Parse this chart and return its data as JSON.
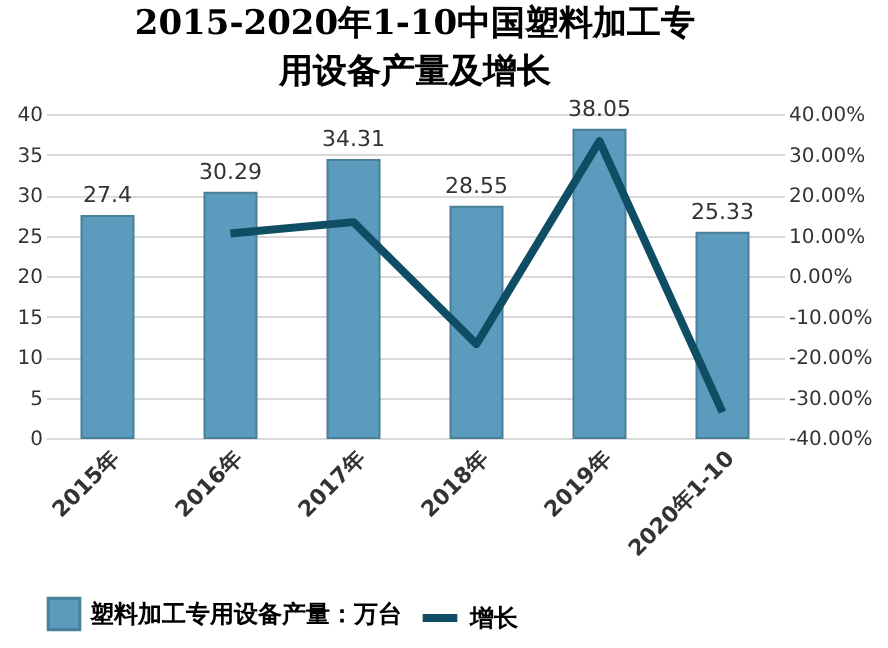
{
  "chart_data": {
    "type": "bar",
    "title": "2015-2020年1-10中国塑料加工专用设备产量及增长",
    "categories": [
      "2015年",
      "2016年",
      "2017年",
      "2018年",
      "2019年",
      "2020年1-10"
    ],
    "series": [
      {
        "name": "塑料加工专用设备产量：万台",
        "color": "#5b9bbd",
        "values": [
          27.4,
          30.29,
          34.31,
          28.55,
          38.05,
          25.33
        ],
        "value_labels": [
          "27.4",
          "30.29",
          "34.31",
          "28.55",
          "38.05",
          "25.33"
        ]
      },
      {
        "name": "增长",
        "type": "line",
        "axis": "y2",
        "color": "#0e4d64",
        "values": [
          null,
          10.5,
          13.3,
          -16.8,
          33.3,
          -33.6
        ]
      }
    ],
    "ylim": [
      0,
      40
    ],
    "yticks": [
      0,
      5,
      10,
      15,
      20,
      25,
      30,
      35,
      40
    ],
    "y2lim": [
      -40,
      40
    ],
    "y2ticks": [
      {
        "value": -40,
        "label": "-40.00%"
      },
      {
        "value": -30,
        "label": "-30.00%"
      },
      {
        "value": -20,
        "label": "-20.00%"
      },
      {
        "value": -10,
        "label": "-10.00%"
      },
      {
        "value": 0,
        "label": "0.00%"
      },
      {
        "value": 10,
        "label": "10.00%"
      },
      {
        "value": 20,
        "label": "20.00%"
      },
      {
        "value": 30,
        "label": "30.00%"
      },
      {
        "value": 40,
        "label": "40.00%"
      }
    ],
    "grid": "y",
    "legend": "bottom",
    "marker": "none"
  }
}
